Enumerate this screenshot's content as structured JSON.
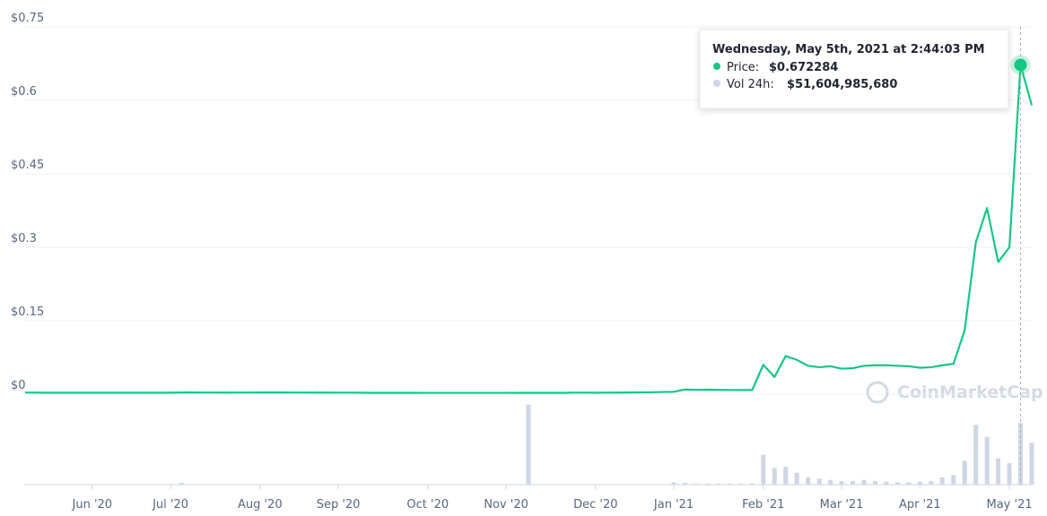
{
  "chart_data": {
    "type": "line",
    "categories": [
      null,
      null,
      null,
      null,
      null,
      null,
      "Jun '20",
      null,
      null,
      null,
      null,
      null,
      null,
      "Jul '20",
      null,
      null,
      null,
      null,
      null,
      null,
      null,
      "Aug '20",
      null,
      null,
      null,
      null,
      null,
      null,
      "Sep '20",
      null,
      null,
      null,
      null,
      null,
      null,
      null,
      "Oct '20",
      null,
      null,
      null,
      null,
      null,
      null,
      "Nov '20",
      null,
      null,
      null,
      null,
      null,
      null,
      null,
      "Dec '20",
      null,
      null,
      null,
      null,
      null,
      null,
      "Jan '21",
      null,
      null,
      null,
      null,
      null,
      null,
      null,
      "Feb '21",
      null,
      null,
      null,
      null,
      null,
      null,
      "Mar '21",
      null,
      null,
      null,
      null,
      null,
      null,
      "Apr '21",
      null,
      null,
      null,
      null,
      null,
      null,
      null,
      "May '21",
      null,
      null
    ],
    "series": [
      {
        "name": "Price",
        "color": "#16c784",
        "values": [
          0.0033,
          0.0031,
          0.003,
          0.003,
          0.003,
          0.0029,
          0.0029,
          0.003,
          0.003,
          0.003,
          0.003,
          0.003,
          0.003,
          0.003,
          0.0035,
          0.0034,
          0.0033,
          0.0033,
          0.0032,
          0.0033,
          0.0033,
          0.0034,
          0.0034,
          0.0034,
          0.0033,
          0.0033,
          0.0032,
          0.0032,
          0.0031,
          0.0031,
          0.0029,
          0.0028,
          0.0028,
          0.0028,
          0.0027,
          0.0027,
          0.0026,
          0.0026,
          0.0026,
          0.0026,
          0.0026,
          0.0026,
          0.0026,
          0.0026,
          0.0027,
          0.0027,
          0.0027,
          0.0027,
          0.0028,
          0.0031,
          0.0031,
          0.003,
          0.0031,
          0.0032,
          0.0035,
          0.0037,
          0.0039,
          0.0045,
          0.0048,
          0.0095,
          0.0088,
          0.0092,
          0.0087,
          0.0086,
          0.0085,
          0.0084,
          0.06,
          0.035,
          0.078,
          0.07,
          0.058,
          0.055,
          0.057,
          0.052,
          0.053,
          0.058,
          0.059,
          0.059,
          0.058,
          0.057,
          0.054,
          0.055,
          0.059,
          0.062,
          0.13,
          0.31,
          0.38,
          0.27,
          0.3,
          0.672284,
          0.59
        ]
      },
      {
        "name": "Vol 24h",
        "color": "#cfd6e4",
        "axis": "y2",
        "type": "bar",
        "values": [
          300000000,
          300000000,
          300000000,
          300000000,
          300000000,
          300000000,
          300000000,
          300000000,
          300000000,
          300000000,
          300000000,
          300000000,
          300000000,
          300000000,
          1500000000,
          300000000,
          300000000,
          300000000,
          300000000,
          300000000,
          300000000,
          300000000,
          300000000,
          300000000,
          300000000,
          300000000,
          300000000,
          300000000,
          300000000,
          300000000,
          300000000,
          300000000,
          300000000,
          300000000,
          300000000,
          300000000,
          300000000,
          300000000,
          300000000,
          300000000,
          300000000,
          300000000,
          300000000,
          300000000,
          300000000,
          67000000000,
          400000000,
          400000000,
          400000000,
          400000000,
          400000000,
          400000000,
          400000000,
          400000000,
          400000000,
          400000000,
          400000000,
          400000000,
          2000000000,
          1500000000,
          800000000,
          800000000,
          800000000,
          800000000,
          800000000,
          1000000000,
          25000000000,
          14000000000,
          15000000000,
          10000000000,
          6000000000,
          5000000000,
          4000000000,
          3000000000,
          3000000000,
          4000000000,
          3000000000,
          2500000000,
          2000000000,
          2000000000,
          2500000000,
          3000000000,
          6000000000,
          8000000000,
          20000000000,
          50000000000,
          40000000000,
          22000000000,
          18000000000,
          51604985680,
          35000000000
        ]
      }
    ],
    "ylim": [
      0,
      0.75
    ],
    "yticks": [
      {
        "value": 0,
        "label": "$0"
      },
      {
        "value": 0.15,
        "label": "$0.15"
      },
      {
        "value": 0.3,
        "label": "$0.3"
      },
      {
        "value": 0.45,
        "label": "$0.45"
      },
      {
        "value": 0.6,
        "label": "$0.6"
      },
      {
        "value": 0.75,
        "label": "$0.75"
      }
    ],
    "y2lim": [
      0,
      75000000000
    ],
    "grid": true,
    "watermark": "CoinMarketCap",
    "tooltip": {
      "title": "Wednesday, May 5th, 2021 at 2:44:03 PM",
      "price_label": "Price:",
      "price": "$0.672284",
      "volume_label": "Vol 24h:",
      "volume": "$51,604,985,680"
    }
  }
}
